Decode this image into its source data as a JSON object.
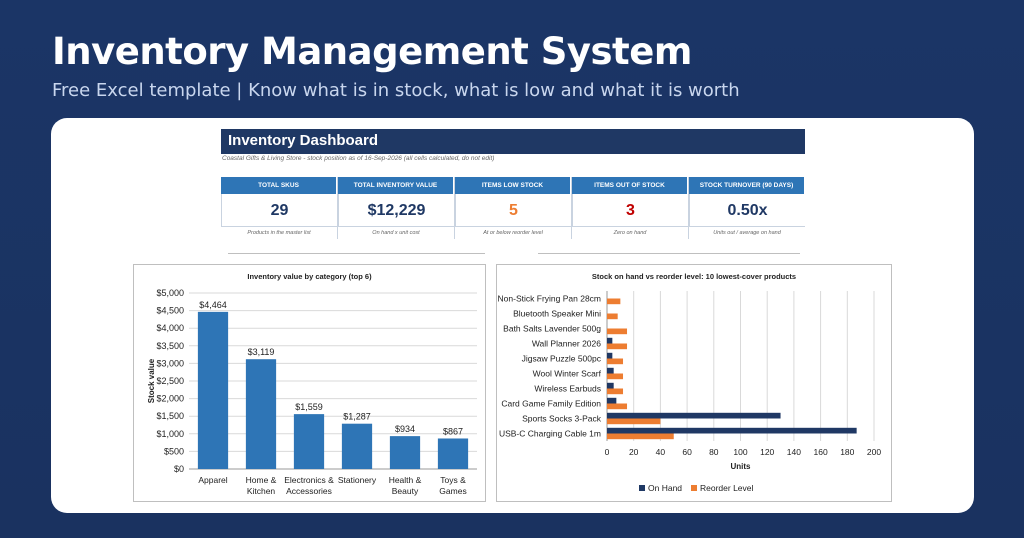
{
  "header": {
    "title": "Inventory Management System",
    "subtitle": "Free Excel template  |  Know what is in stock, what is low and what it is worth"
  },
  "dashboard": {
    "title": "Inventory Dashboard",
    "subtitle": "Coastal Gifts & Living Store - stock position as of 16-Sep-2026 (all cells calculated, do not edit)",
    "kpis": [
      {
        "label": "Total SKUs",
        "value": "29",
        "note": "Products in the master list",
        "color": "#1f3864"
      },
      {
        "label": "Total Inventory Value",
        "value": "$12,229",
        "note": "On hand x unit cost",
        "color": "#1f3864"
      },
      {
        "label": "Items Low Stock",
        "value": "5",
        "note": "At or below reorder level",
        "color": "#ed7d31"
      },
      {
        "label": "Items Out of Stock",
        "value": "3",
        "note": "Zero on hand",
        "color": "#c00000"
      },
      {
        "label": "Stock Turnover (90 days)",
        "value": "0.50x",
        "note": "Units out / average on hand",
        "color": "#1f3864"
      }
    ]
  },
  "chart_data": [
    {
      "type": "bar",
      "title": "Inventory value by category (top 6)",
      "ylabel": "Stock value",
      "categories": [
        "Apparel",
        "Home & Kitchen",
        "Electronics & Accessories",
        "Stationery",
        "Health & Beauty",
        "Toys & Games"
      ],
      "category_lines": [
        [
          "Apparel"
        ],
        [
          "Home &",
          "Kitchen"
        ],
        [
          "Electronics &",
          "Accessories"
        ],
        [
          "Stationery"
        ],
        [
          "Health &",
          "Beauty"
        ],
        [
          "Toys &",
          "Games"
        ]
      ],
      "values": [
        4464,
        3119,
        1559,
        1287,
        934,
        867
      ],
      "value_labels": [
        "$4,464",
        "$3,119",
        "$1,559",
        "$1,287",
        "$934",
        "$867"
      ],
      "ylim": [
        0,
        5000
      ],
      "yticks": [
        "$0",
        "$500",
        "$1,000",
        "$1,500",
        "$2,000",
        "$2,500",
        "$3,000",
        "$3,500",
        "$4,000",
        "$4,500",
        "$5,000"
      ],
      "color": "#2e75b6",
      "grid": true
    },
    {
      "type": "bar",
      "orientation": "horizontal",
      "title": "Stock on hand vs reorder level: 10 lowest-cover products",
      "xlabel": "Units",
      "categories": [
        "Non-Stick Frying Pan 28cm",
        "Bluetooth Speaker Mini",
        "Bath Salts Lavender 500g",
        "Wall Planner 2026",
        "Jigsaw Puzzle 500pc",
        "Wool Winter Scarf",
        "Wireless Earbuds",
        "Card Game Family Edition",
        "Sports Socks 3-Pack",
        "USB-C Charging Cable 1m"
      ],
      "series": [
        {
          "name": "On Hand",
          "color": "#1f3864",
          "values": [
            0,
            0,
            0,
            4,
            4,
            5,
            5,
            7,
            130,
            187
          ]
        },
        {
          "name": "Reorder Level",
          "color": "#ed7d31",
          "values": [
            10,
            8,
            15,
            15,
            12,
            12,
            12,
            15,
            40,
            50
          ]
        }
      ],
      "xlim": [
        0,
        200
      ],
      "xticks": [
        "0",
        "20",
        "40",
        "60",
        "80",
        "100",
        "120",
        "140",
        "160",
        "180",
        "200"
      ],
      "legend": "bottom",
      "grid": true
    }
  ]
}
